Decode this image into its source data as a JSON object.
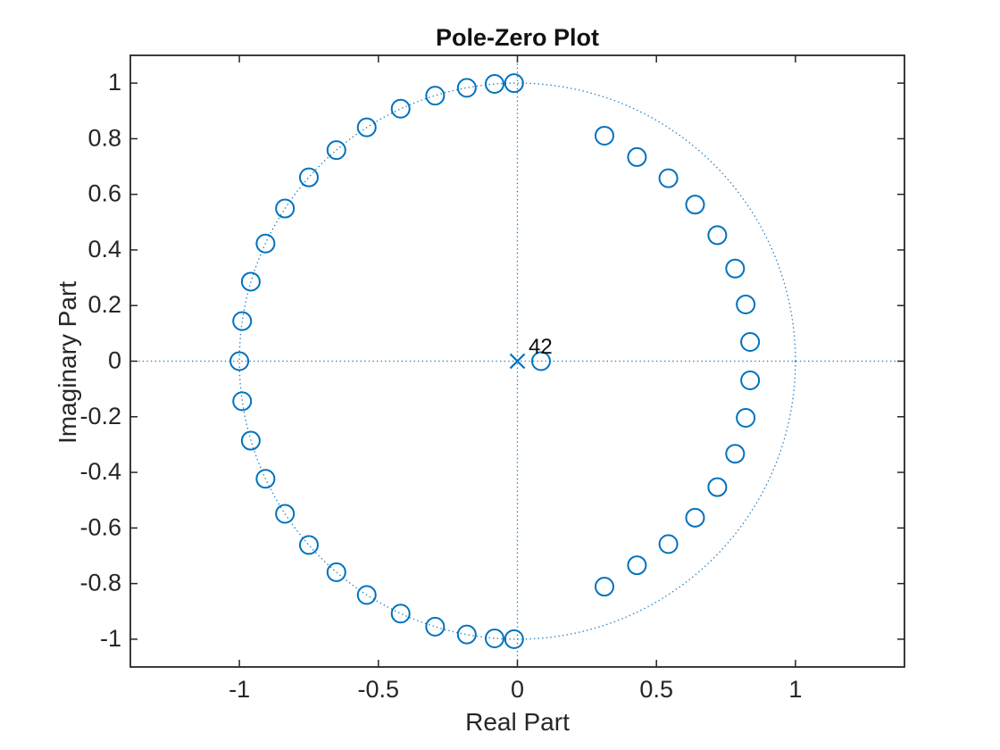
{
  "chart_data": {
    "type": "scatter",
    "subtype": "pole-zero-plot",
    "title": "Pole-Zero Plot",
    "xlabel": "Real Part",
    "ylabel": "Imaginary Part",
    "xlim": [
      -1.392,
      1.39
    ],
    "ylim": [
      -1.1,
      1.1
    ],
    "grid": false,
    "legend": "none",
    "xticks": {
      "values": [
        -1,
        -0.5,
        0,
        0.5,
        1
      ],
      "labels": [
        "-1",
        "-0.5",
        "0",
        "0.5",
        "1"
      ]
    },
    "yticks": {
      "values": [
        -1,
        -0.8,
        -0.6,
        -0.4,
        -0.2,
        0,
        0.2,
        0.4,
        0.6,
        0.8,
        1
      ],
      "labels": [
        "-1",
        "-0.8",
        "-0.6",
        "-0.4",
        "-0.2",
        "0",
        "0.2",
        "0.4",
        "0.6",
        "0.8",
        "1"
      ]
    },
    "unit_circle": {
      "radius": 1,
      "style": "dotted"
    },
    "reference_lines": {
      "horizontal_at": 0,
      "vertical_at": 0,
      "style": "dotted"
    },
    "zeros": [
      [
        -0.012,
        1.0
      ],
      [
        -0.082,
        0.997
      ],
      [
        -0.182,
        0.983
      ],
      [
        -0.296,
        0.955
      ],
      [
        -0.42,
        0.908
      ],
      [
        -0.542,
        0.841
      ],
      [
        -0.651,
        0.759
      ],
      [
        -0.75,
        0.661
      ],
      [
        -0.836,
        0.549
      ],
      [
        -0.906,
        0.423
      ],
      [
        -0.959,
        0.286
      ],
      [
        -0.99,
        0.144
      ],
      [
        -1.0,
        0.0
      ],
      [
        -0.99,
        -0.144
      ],
      [
        -0.959,
        -0.286
      ],
      [
        -0.906,
        -0.423
      ],
      [
        -0.836,
        -0.549
      ],
      [
        -0.75,
        -0.661
      ],
      [
        -0.651,
        -0.759
      ],
      [
        -0.542,
        -0.841
      ],
      [
        -0.42,
        -0.908
      ],
      [
        -0.296,
        -0.955
      ],
      [
        -0.182,
        -0.983
      ],
      [
        -0.082,
        -0.997
      ],
      [
        -0.012,
        -1.0
      ],
      [
        0.313,
        0.811
      ],
      [
        0.43,
        0.734
      ],
      [
        0.543,
        0.658
      ],
      [
        0.639,
        0.563
      ],
      [
        0.719,
        0.453
      ],
      [
        0.783,
        0.333
      ],
      [
        0.821,
        0.204
      ],
      [
        0.837,
        0.069
      ],
      [
        0.837,
        -0.069
      ],
      [
        0.821,
        -0.204
      ],
      [
        0.783,
        -0.333
      ],
      [
        0.719,
        -0.453
      ],
      [
        0.639,
        -0.563
      ],
      [
        0.543,
        -0.658
      ],
      [
        0.43,
        -0.734
      ],
      [
        0.313,
        -0.811
      ],
      [
        0.085,
        0.0
      ]
    ],
    "poles": [
      [
        0,
        0
      ]
    ],
    "pole_multiplicity": 42,
    "pole_annotation": "42",
    "colors": {
      "marker": "#0072BD",
      "dotted_line": "#1E7DC2",
      "axis": "#262626",
      "title_text": "#121212",
      "annotation_text": "#0d0d0d",
      "background": "#ffffff"
    }
  }
}
